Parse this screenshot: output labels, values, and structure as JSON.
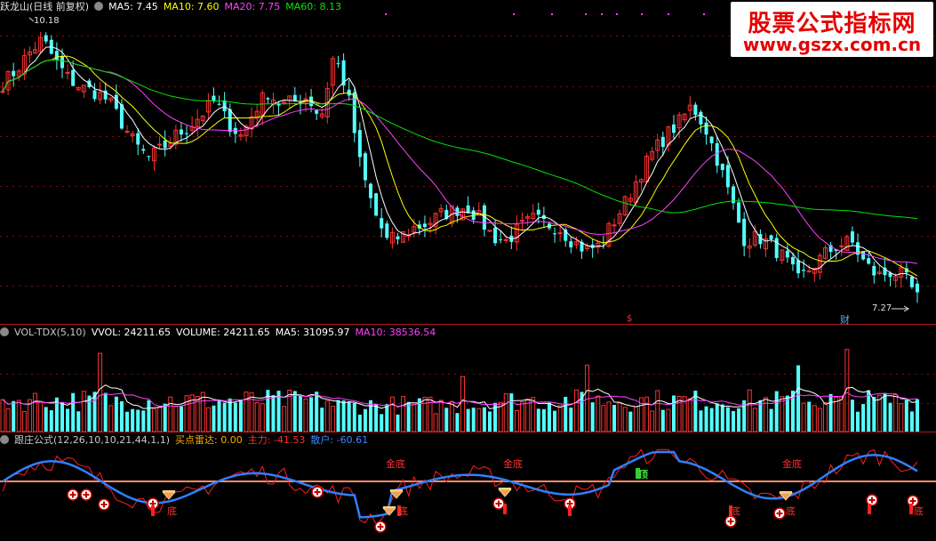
{
  "header_main": {
    "title": "跃龙山(日线 前复权)",
    "ma5": "MA5: 7.45",
    "ma10": "MA10: 7.60",
    "ma20": "MA20: 7.75",
    "ma60": "MA60: 8.13",
    "high_label": "10.18",
    "low_label": "7.27",
    "event_label": "财",
    "dollar_label": "$"
  },
  "header_vol": {
    "name": "VOL-TDX(5,10)",
    "vvol": "VVOL: 24211.65",
    "volume": "VOLUME: 24211.65",
    "ma5": "MA5: 31095.97",
    "ma10": "MA10: 38536.54"
  },
  "header_ind": {
    "name": "跟庄公式(12,26,10,10,21,44,1,1)",
    "radar": "买点雷达: 0.00",
    "zhuli": "主力: -41.53",
    "sanhu": "散户: -60.61"
  },
  "signals": {
    "jindi": "金底",
    "ding": "顶",
    "di": "底"
  },
  "watermark": {
    "line1": "股票公式指标网",
    "line2": "www.gszx.com.cn"
  },
  "colors": {
    "up": "#ff3232",
    "down": "#54ffff",
    "ma5": "#ffffff",
    "ma10": "#ffff00",
    "ma20": "#ff40ff",
    "ma60": "#00e600",
    "zhuli": "#ff2020",
    "sanhu": "#2f80ff",
    "ref_line": "#ff8c6a"
  },
  "chart_data": [
    {
      "type": "candlestick",
      "name": "跃龙山(日线 前复权)",
      "series": [
        {
          "name": "MA5",
          "value": 7.45
        },
        {
          "name": "MA10",
          "value": 7.6
        },
        {
          "name": "MA20",
          "value": 7.75
        },
        {
          "name": "MA60",
          "value": 8.13
        }
      ],
      "annotations": {
        "high": 10.18,
        "low": 7.27
      },
      "close_path": [
        9.55,
        9.7,
        9.9,
        10.05,
        9.8,
        9.6,
        9.5,
        9.45,
        9.35,
        9.1,
        8.85,
        8.7,
        8.8,
        8.95,
        9.05,
        9.2,
        9.35,
        9.1,
        8.95,
        9.25,
        9.45,
        9.3,
        9.35,
        9.4,
        9.15,
        9.9,
        9.45,
        8.6,
        8.1,
        7.75,
        7.8,
        7.9,
        7.95,
        8.05,
        8.1,
        8.15,
        8.0,
        7.8,
        7.75,
        7.9,
        8.0,
        7.95,
        7.9,
        7.75,
        7.65,
        7.7,
        7.95,
        8.2,
        8.5,
        8.75,
        8.95,
        9.1,
        9.3,
        9.05,
        8.65,
        8.2,
        7.75,
        7.8,
        7.7,
        7.55,
        7.3,
        7.45,
        7.6,
        7.7,
        7.75,
        7.5,
        7.35,
        7.4,
        7.35,
        7.1
      ]
    },
    {
      "type": "bar",
      "name": "VOL-TDX(5,10)",
      "series": [
        {
          "name": "VVOL",
          "value": 24211.65
        },
        {
          "name": "VOLUME",
          "value": 24211.65
        },
        {
          "name": "MA5",
          "value": 31095.97
        },
        {
          "name": "MA10",
          "value": 38536.54
        }
      ]
    },
    {
      "type": "line",
      "name": "跟庄公式(12,26,10,10,21,44,1,1)",
      "series": [
        {
          "name": "买点雷达",
          "value": 0.0
        },
        {
          "name": "主力",
          "value": -41.53
        },
        {
          "name": "散户",
          "value": -60.61
        }
      ]
    }
  ]
}
